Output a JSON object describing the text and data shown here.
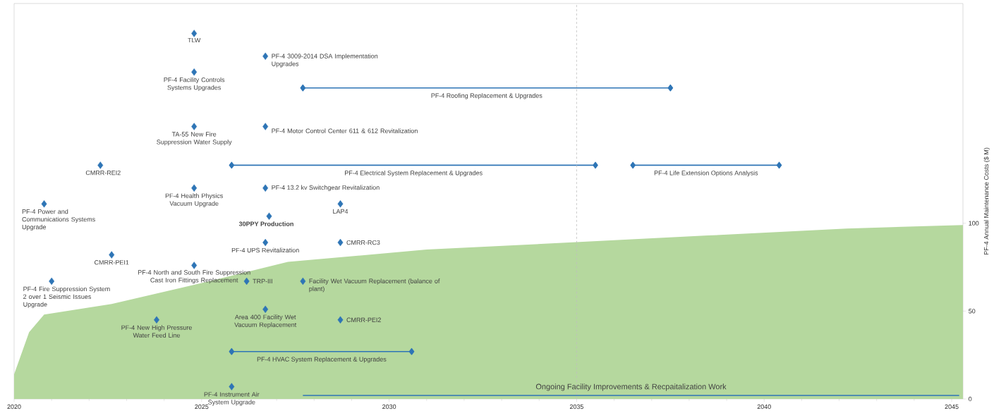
{
  "chart_data": {
    "type": "scatter",
    "ylabel": "PF-4 Annual Maintenance Costs ($ M)",
    "xlim": [
      2020,
      2045.3
    ],
    "xticks": [
      2020,
      2025,
      2030,
      2035,
      2040,
      2045
    ],
    "ylim": [
      0,
      225
    ],
    "yticks": [
      0,
      50,
      100
    ],
    "annotations": [
      {
        "text": "TLW",
        "x": 2024.8,
        "y": 208
      },
      {
        "text": "PF-4 3009-2014 DSA Implementation Upgrades",
        "x": 2026.7,
        "y": 195
      },
      {
        "text": "PF-4 Facility Controls Systems Upgrades",
        "x": 2024.8,
        "y": 186
      },
      {
        "text": "TA-55 New Fire Suppression Water Supply",
        "x": 2024.8,
        "y": 155
      },
      {
        "text": "PF-4 Motor Control Center 611 & 612 Revitalization",
        "x": 2026.7,
        "y": 155
      },
      {
        "text": "CMRR-REI2",
        "x": 2022.3,
        "y": 133
      },
      {
        "text": "PF-4 Health Physics Vacuum Upgrade",
        "x": 2024.8,
        "y": 120
      },
      {
        "text": "PF-4 13.2 kv Switchgear Revitalization",
        "x": 2026.7,
        "y": 120
      },
      {
        "text": "PF-4 Power and Communications Systems Upgrade",
        "x": 2020.8,
        "y": 111
      },
      {
        "text": "LAP4",
        "x": 2028.7,
        "y": 111
      },
      {
        "text": "**30PPY Production**",
        "x": 2026.8,
        "y": 104
      },
      {
        "text": "PF-4 UPS Revitalization",
        "x": 2026.7,
        "y": 89
      },
      {
        "text": "CMRR-RC3",
        "x": 2028.7,
        "y": 89
      },
      {
        "text": "CMRR-PEI1",
        "x": 2022.6,
        "y": 82
      },
      {
        "text": "PF-4 North and South Fire Suppression Cast Iron Fittings Replacement",
        "x": 2024.8,
        "y": 76
      },
      {
        "text": "PF-4 Fire Suppression System 2 over 1 Seismic Issues Upgrade",
        "x": 2021.0,
        "y": 67
      },
      {
        "text": "TRP-III",
        "x": 2026.2,
        "y": 67
      },
      {
        "text": "Facility Wet Vacuum Replacement (balance of plant)",
        "x": 2027.7,
        "y": 67
      },
      {
        "text": "Area 400 Facility Wet Vacuum Replacement",
        "x": 2026.7,
        "y": 51
      },
      {
        "text": "PF-4 New High Pressure Water Feed Line",
        "x": 2023.8,
        "y": 45
      },
      {
        "text": "CMRR-PEI2",
        "x": 2028.7,
        "y": 45
      },
      {
        "text": "PF-4 Instrument Air System Upgrade",
        "x": 2025.8,
        "y": 7
      }
    ],
    "ref_lines": [
      {
        "axis": "x",
        "value": 2035,
        "color": "#bfbfbf",
        "line_style": "dashed"
      }
    ],
    "series": [
      {
        "type": "area",
        "color": "#b5d89e",
        "x": [
          2020,
          2020.4,
          2020.8,
          2022.6,
          2025.2,
          2027.3,
          2031.0,
          2034.8,
          2038.5,
          2042.2,
          2045.3
        ],
        "values": [
          14,
          38,
          48,
          54,
          67,
          78,
          85,
          89,
          93,
          97,
          99
        ]
      },
      {
        "color": "#2e75b6",
        "marker": "diamond",
        "x": [
          2024.8,
          2026.7,
          2024.8,
          2024.8,
          2026.7,
          2022.3,
          2024.8,
          2026.7,
          2020.8,
          2028.7,
          2026.8,
          2026.7,
          2028.7,
          2022.6,
          2024.8,
          2021.0,
          2026.2,
          2027.7,
          2026.7,
          2023.8,
          2028.7,
          2025.8
        ],
        "values": [
          208,
          195,
          186,
          155,
          155,
          133,
          120,
          120,
          111,
          111,
          104,
          89,
          89,
          82,
          76,
          67,
          67,
          67,
          51,
          45,
          45,
          7
        ]
      },
      {
        "type": "line",
        "name": "PF-4 Roofing Replacement & Upgrades",
        "color": "#2e75b6",
        "marker": "diamond",
        "x": [
          2027.7,
          2037.5
        ],
        "values": [
          177,
          177
        ]
      },
      {
        "type": "line",
        "name": "PF-4 Electrical System Replacement & Upgrades",
        "color": "#2e75b6",
        "marker": "diamond",
        "x": [
          2025.8,
          2035.5
        ],
        "values": [
          133,
          133
        ]
      },
      {
        "type": "line",
        "name": "PF-4 Life Extension Options Analysis",
        "color": "#2e75b6",
        "marker": "diamond",
        "x": [
          2036.5,
          2040.4
        ],
        "values": [
          133,
          133
        ]
      },
      {
        "type": "line",
        "name": "PF-4 HVAC System Replacement & Upgrades",
        "color": "#2e75b6",
        "marker": "diamond",
        "x": [
          2025.8,
          2030.6
        ],
        "values": [
          27,
          27
        ]
      },
      {
        "type": "line",
        "name": "Ongoing Facility Improvements & Recpaitalization Work",
        "color": "#2e75b6",
        "marker": "none",
        "x": [
          2027.7,
          2045.2
        ],
        "values": [
          2,
          2
        ]
      }
    ]
  }
}
